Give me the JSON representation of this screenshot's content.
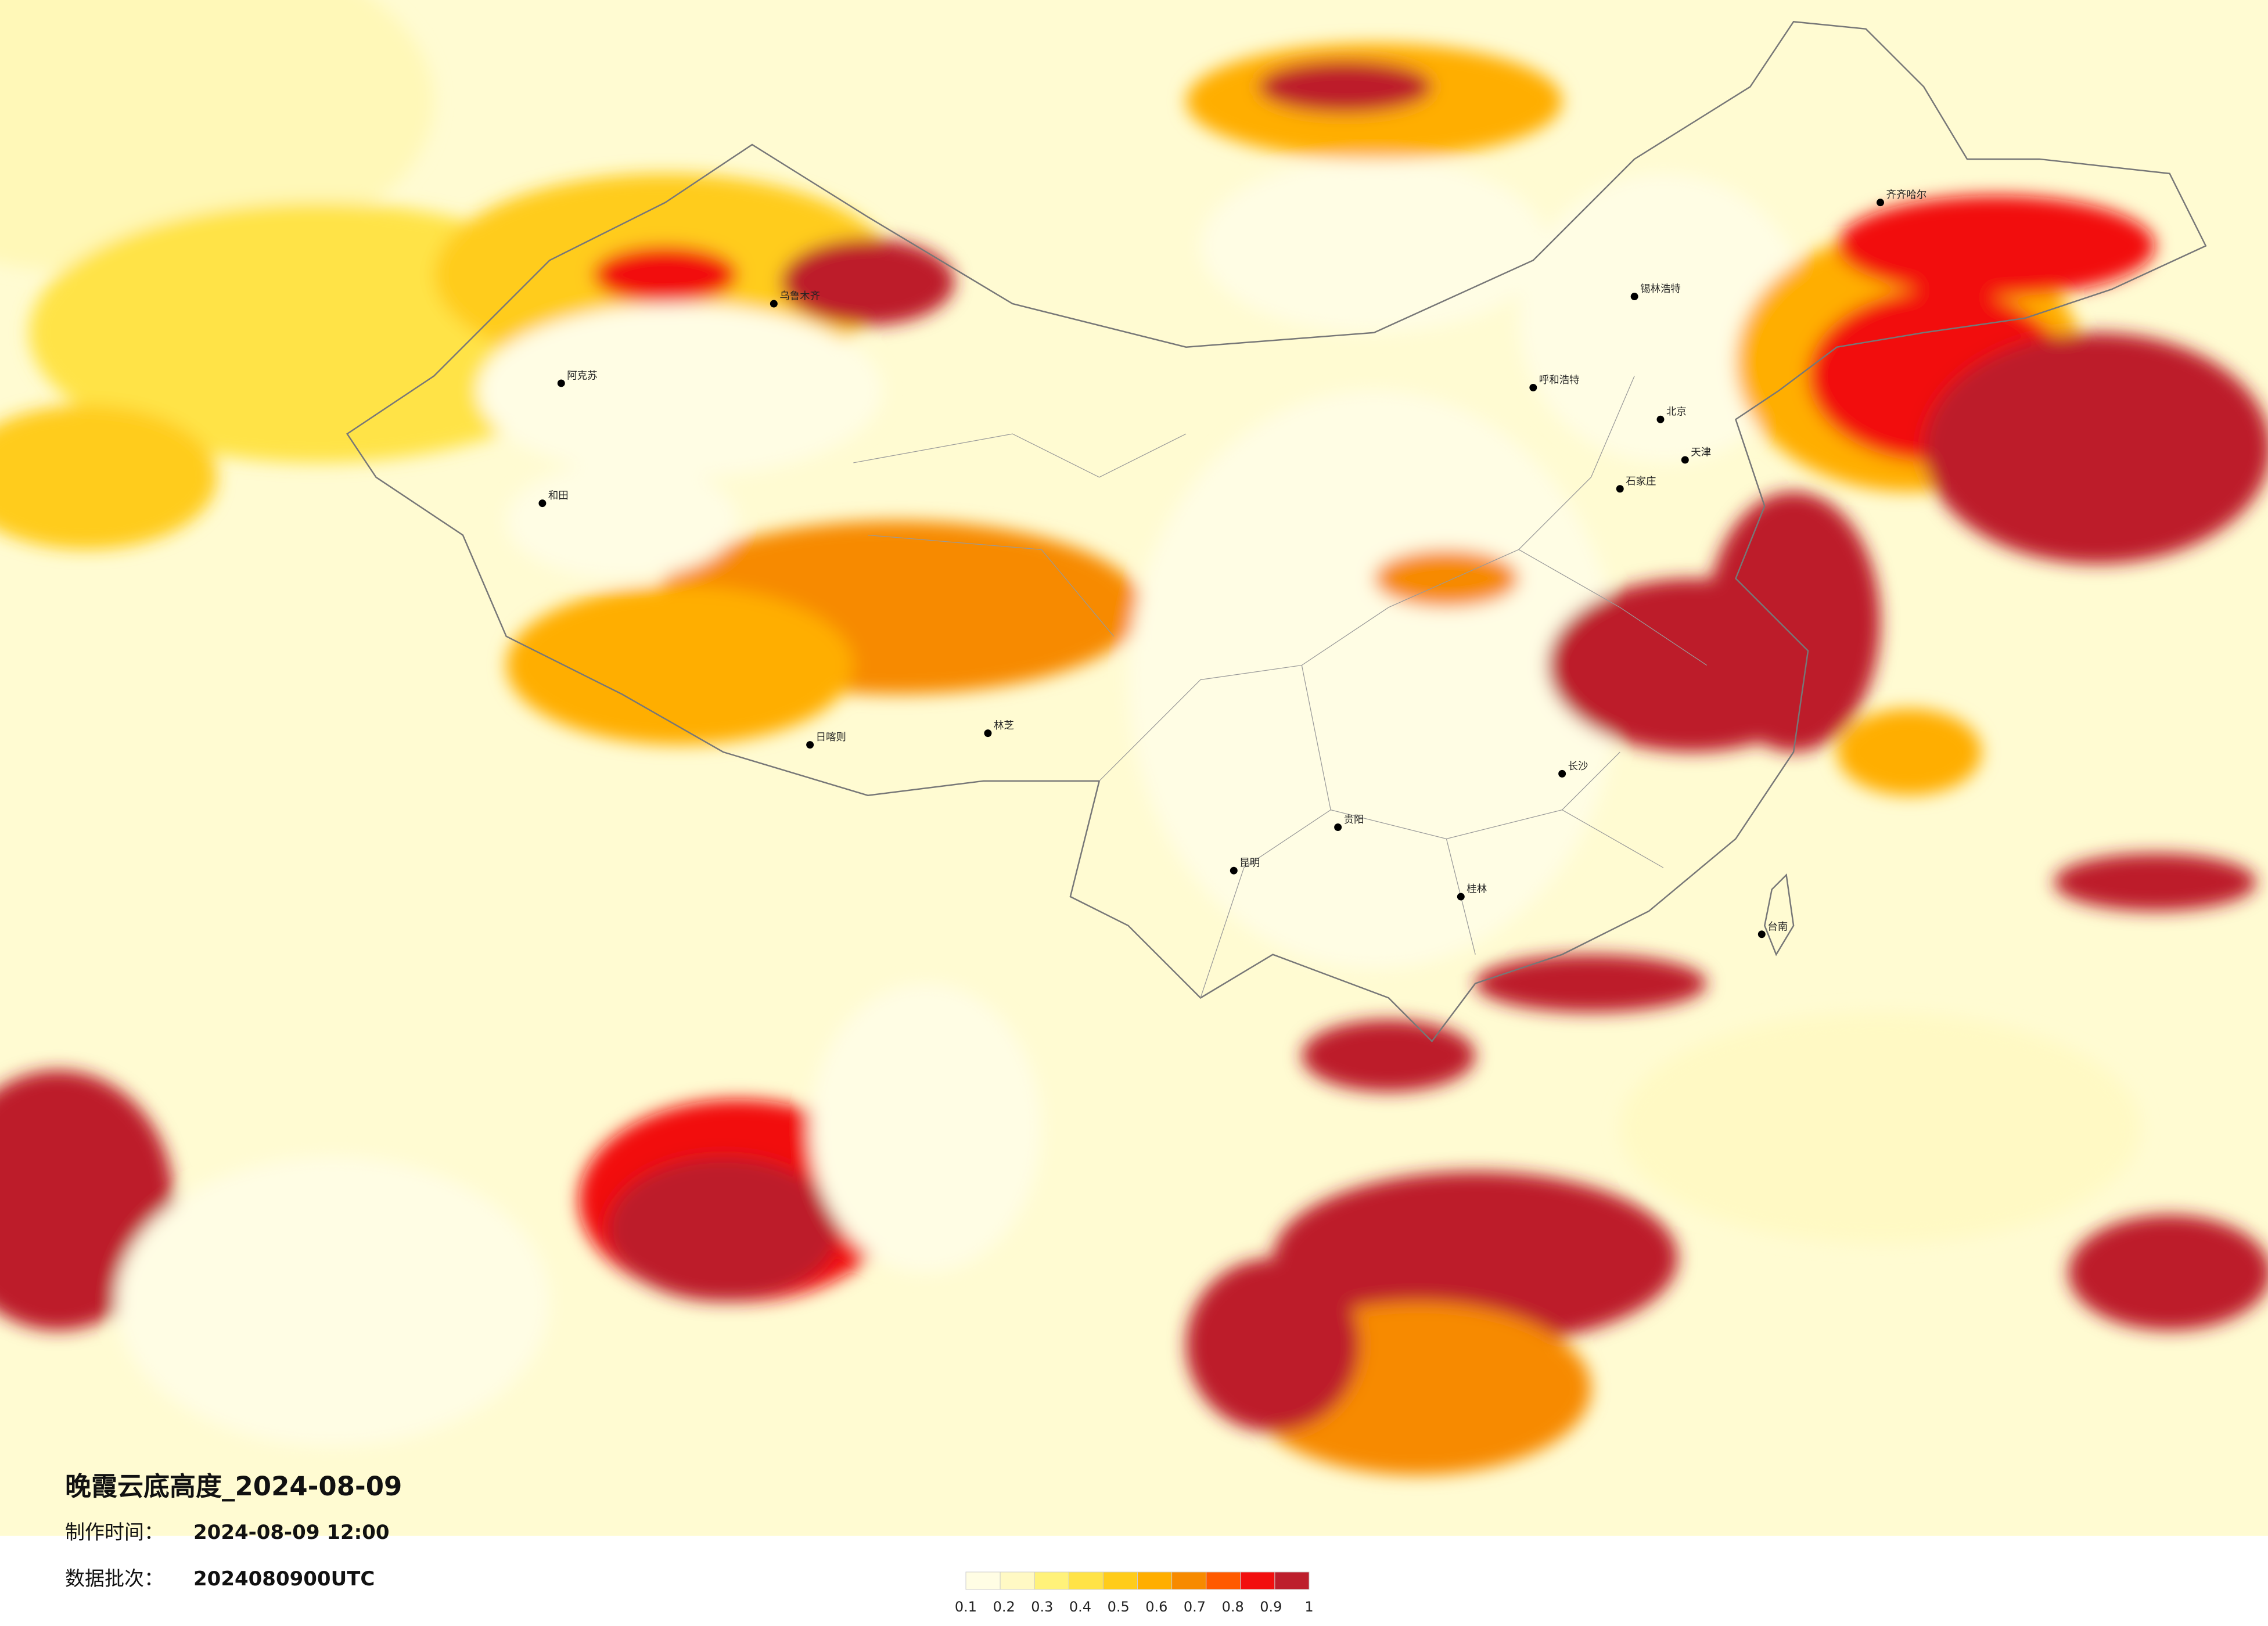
{
  "header": {
    "title": "晚霞云底高度_2024-08-09",
    "made_label": "制作时间：",
    "made_time": "2024-08-09 12:00",
    "batch_label": "数据批次：",
    "batch": "2024080900UTC"
  },
  "cities": [
    {
      "name": "北京"
    },
    {
      "name": "天津"
    },
    {
      "name": "石家庄"
    },
    {
      "name": "呼和浩特"
    },
    {
      "name": "乌鲁木齐"
    },
    {
      "name": "和田"
    },
    {
      "name": "阿克苏"
    },
    {
      "name": "日喀则"
    },
    {
      "name": "林芝"
    },
    {
      "name": "昆明"
    },
    {
      "name": "贵阳"
    },
    {
      "name": "长沙"
    },
    {
      "name": "桂林"
    },
    {
      "name": "锡林浩特"
    },
    {
      "name": "齐齐哈尔"
    },
    {
      "name": "台南"
    }
  ],
  "colorbar": {
    "colors": [
      "#fffde4",
      "#fff9c4",
      "#fff27a",
      "#ffe347",
      "#ffcc1a",
      "#ffae00",
      "#f78a00",
      "#ff5a00",
      "#f20f0f",
      "#bd1e2c"
    ],
    "ticks": [
      0.1,
      0.2,
      0.3,
      0.4,
      0.5,
      0.6,
      0.7,
      0.8,
      0.9,
      1
    ]
  }
}
